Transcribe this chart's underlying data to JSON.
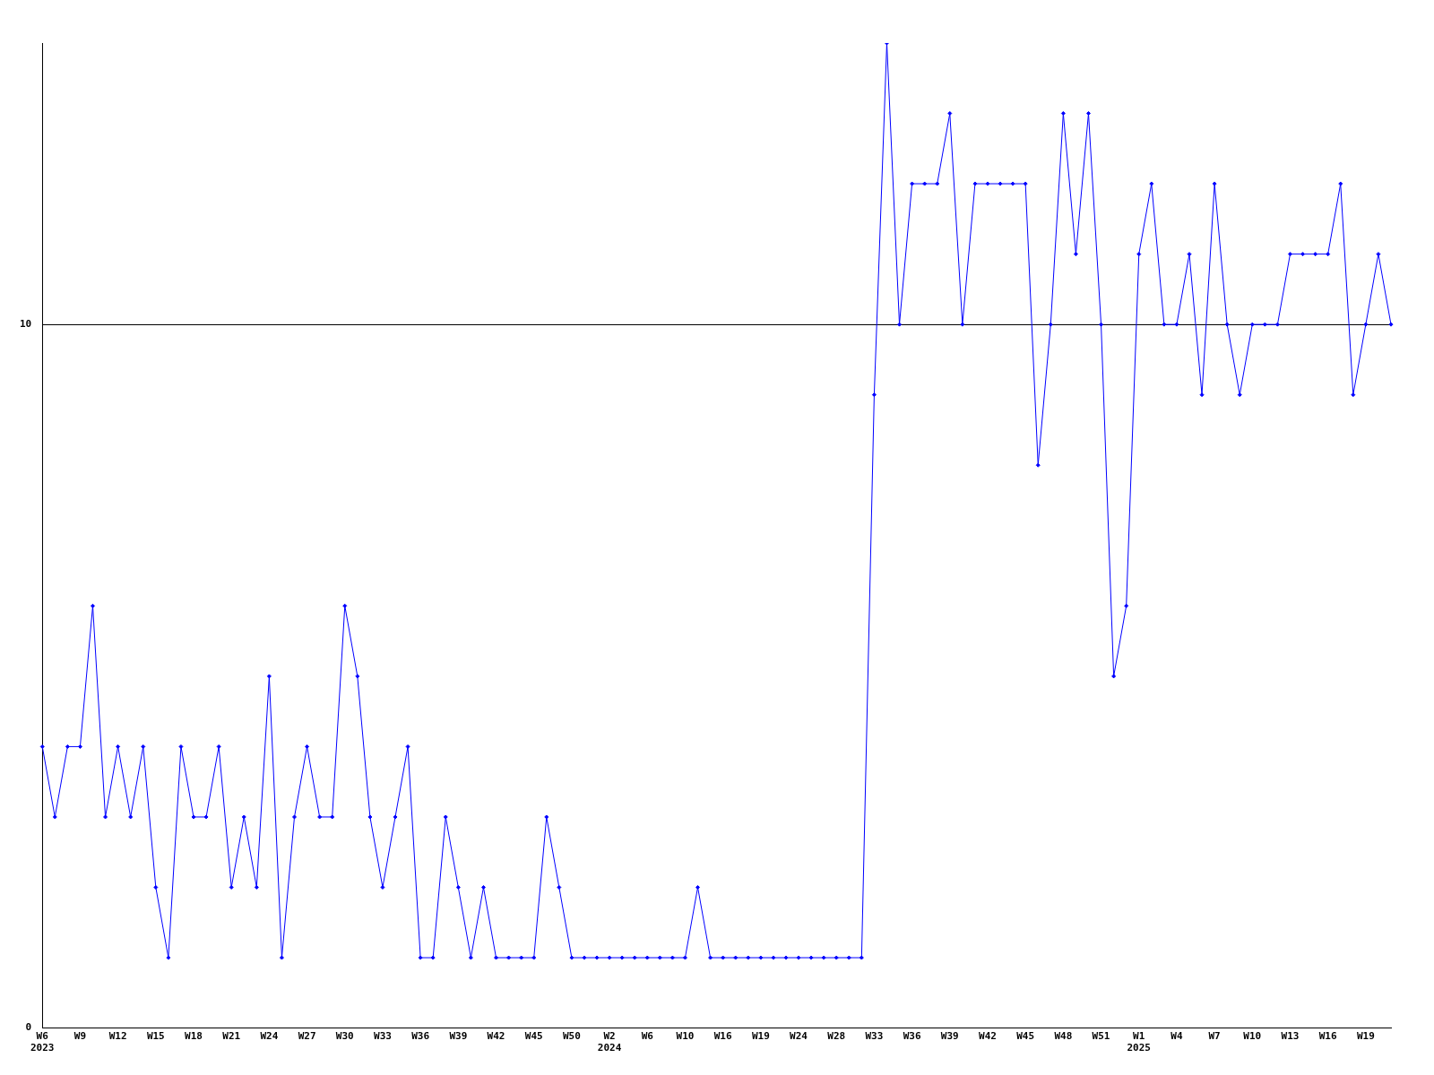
{
  "chart_data": {
    "type": "line",
    "categories": [
      "W6\n2023",
      null,
      null,
      "W9",
      null,
      null,
      "W12",
      null,
      null,
      "W15",
      null,
      null,
      "W18",
      null,
      null,
      "W21",
      null,
      null,
      "W24",
      null,
      null,
      "W27",
      null,
      null,
      "W30",
      null,
      null,
      "W33",
      null,
      null,
      "W36",
      null,
      null,
      "W39",
      null,
      null,
      "W42",
      null,
      null,
      "W45",
      null,
      null,
      "W50",
      null,
      null,
      "W2\n2024",
      null,
      null,
      "W6",
      null,
      null,
      "W10",
      null,
      null,
      "W16",
      null,
      null,
      "W19",
      null,
      null,
      "W24",
      null,
      null,
      "W28",
      null,
      null,
      "W33",
      null,
      null,
      "W36",
      null,
      null,
      "W39",
      null,
      null,
      "W42",
      null,
      null,
      "W45",
      null,
      null,
      "W48",
      null,
      null,
      "W51",
      null,
      null,
      "W1\n2025",
      null,
      null,
      "W4",
      null,
      null,
      "W7",
      null,
      null,
      "W10",
      null,
      null,
      "W13",
      null,
      null,
      "W16",
      null,
      null,
      "W19",
      null,
      null
    ],
    "series": [
      {
        "color": "#0000ff",
        "values": [
          4,
          3,
          4,
          4,
          6,
          3,
          4,
          3,
          4,
          2,
          1,
          4,
          3,
          3,
          4,
          2,
          3,
          2,
          5,
          1,
          3,
          4,
          3,
          3,
          6,
          5,
          3,
          2,
          3,
          4,
          1,
          1,
          3,
          2,
          1,
          2,
          1,
          1,
          1,
          1,
          3,
          2,
          1,
          1,
          1,
          1,
          1,
          1,
          1,
          1,
          1,
          1,
          2,
          1,
          1,
          1,
          1,
          1,
          1,
          1,
          1,
          1,
          1,
          1,
          1,
          1,
          9,
          14,
          10,
          12,
          12,
          12,
          13,
          10,
          12,
          12,
          12,
          12,
          12,
          8,
          10,
          13,
          11,
          13,
          10,
          5,
          6,
          11,
          12,
          10,
          10,
          11,
          9,
          12,
          10,
          9,
          10,
          10,
          10,
          11,
          11,
          11,
          11,
          12,
          9,
          10,
          11,
          10
        ]
      }
    ],
    "ylim": [
      0,
      14
    ],
    "yticks": [
      0,
      10
    ],
    "grid": "y",
    "marker": "diamond",
    "line_style": "solid"
  }
}
